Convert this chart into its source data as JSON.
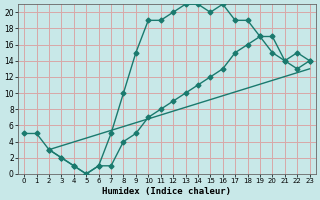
{
  "xlabel": "Humidex (Indice chaleur)",
  "bg_color": "#c8e8e8",
  "grid_color": "#d8a8a8",
  "line_color": "#1a7a6e",
  "xlim": [
    -0.5,
    23.5
  ],
  "ylim": [
    0,
    21
  ],
  "xticks": [
    0,
    1,
    2,
    3,
    4,
    5,
    6,
    7,
    8,
    9,
    10,
    11,
    12,
    13,
    14,
    15,
    16,
    17,
    18,
    19,
    20,
    21,
    22,
    23
  ],
  "yticks": [
    0,
    2,
    4,
    6,
    8,
    10,
    12,
    14,
    16,
    18,
    20
  ],
  "curve1_x": [
    0,
    1,
    2,
    3,
    4,
    5,
    6,
    7,
    8,
    9,
    10,
    11,
    12,
    13,
    14,
    15,
    16,
    17,
    18,
    19,
    20,
    21,
    22,
    23
  ],
  "curve1_y": [
    5,
    5,
    3,
    2,
    1,
    0,
    1,
    5,
    10,
    15,
    19,
    19,
    20,
    21,
    21,
    20,
    21,
    19,
    19,
    17,
    15,
    14,
    15,
    14
  ],
  "curve2_x": [
    2,
    3,
    4,
    5,
    6,
    7,
    8,
    9,
    10,
    11,
    12,
    13,
    14,
    15,
    16,
    17,
    18,
    19,
    20,
    21,
    22,
    23
  ],
  "curve2_y": [
    3,
    2,
    1,
    0,
    1,
    1,
    4,
    5,
    7,
    8,
    9,
    10,
    11,
    12,
    13,
    15,
    16,
    17,
    17,
    14,
    13,
    14
  ],
  "curve3_x": [
    2,
    23
  ],
  "curve3_y": [
    3,
    13
  ],
  "marker": "D",
  "markersize": 2.5,
  "linewidth": 1.0
}
